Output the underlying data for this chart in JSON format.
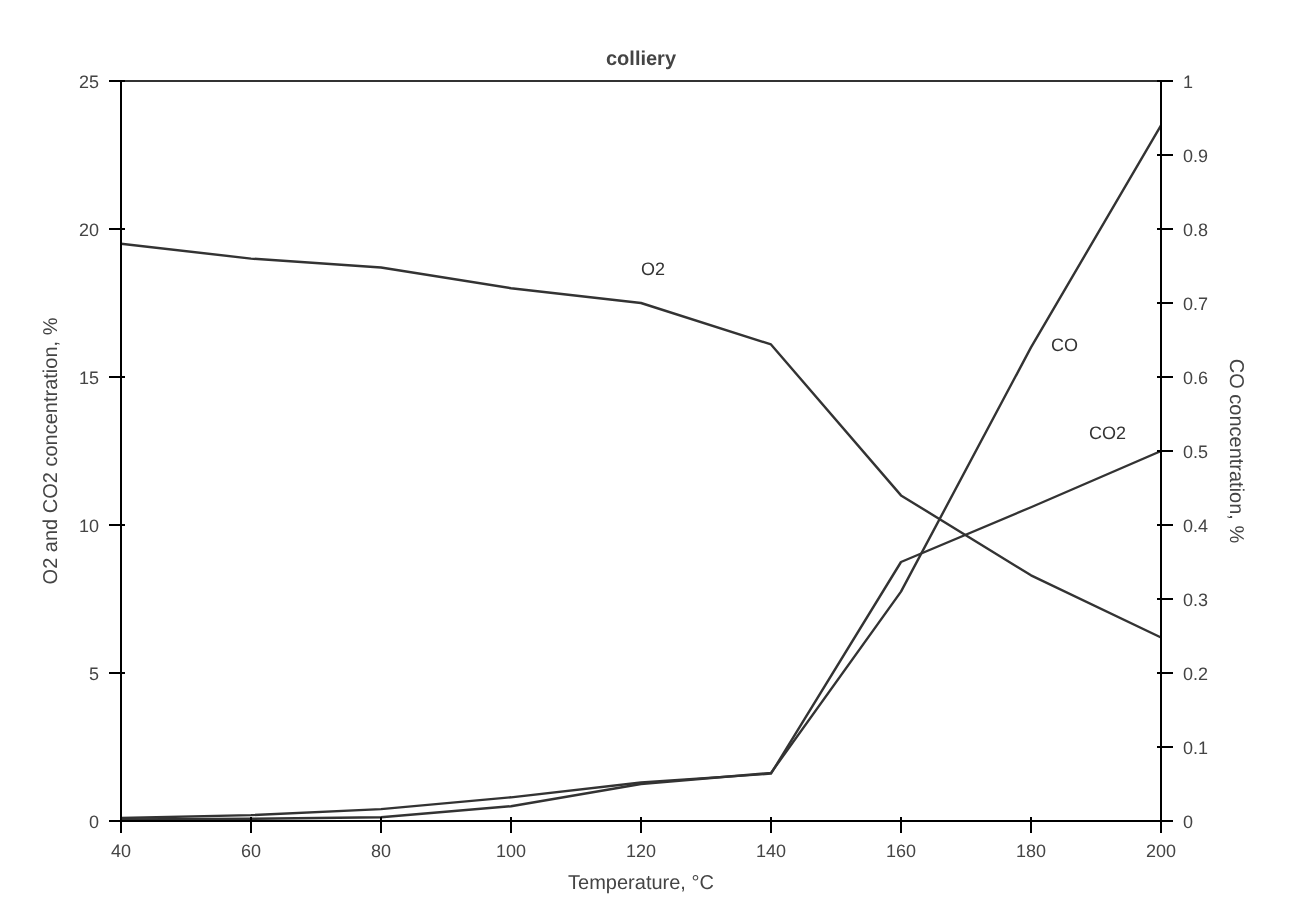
{
  "chart_data": {
    "type": "line",
    "title": "colliery",
    "xlabel": "Temperature, °C",
    "ylabel": "O2 and CO2 concentration, %",
    "y2label": "CO concentration, %",
    "x": [
      40,
      60,
      80,
      100,
      120,
      140,
      160,
      180,
      200
    ],
    "series": [
      {
        "name": "O2",
        "color": "#333333",
        "values": [
          19.5,
          19.0,
          18.7,
          18.0,
          17.5,
          16.1,
          11.0,
          8.3,
          6.2
        ]
      },
      {
        "name": "CO2",
        "color": "#333333",
        "values": [
          0.1,
          0.2,
          0.4,
          0.8,
          1.3,
          1.6,
          8.75,
          10.6,
          12.5
        ]
      },
      {
        "name": "CO",
        "color": "#333333",
        "axis": "y2",
        "values": [
          0.002,
          0.003,
          0.005,
          0.02,
          0.05,
          0.065,
          0.31,
          0.64,
          0.94
        ]
      }
    ],
    "xlim": [
      40,
      200
    ],
    "xticks": [
      40,
      60,
      80,
      100,
      120,
      140,
      160,
      180,
      200
    ],
    "ylim": [
      0,
      25
    ],
    "yticks": [
      0,
      5,
      10,
      15,
      20,
      25
    ],
    "y2lim": [
      0,
      1
    ],
    "y2ticks": [
      0,
      0.1,
      0.2,
      0.3,
      0.4,
      0.5,
      0.6,
      0.7,
      0.8,
      0.9,
      1
    ],
    "grid": false,
    "marker": "none",
    "line_style": "solid"
  }
}
